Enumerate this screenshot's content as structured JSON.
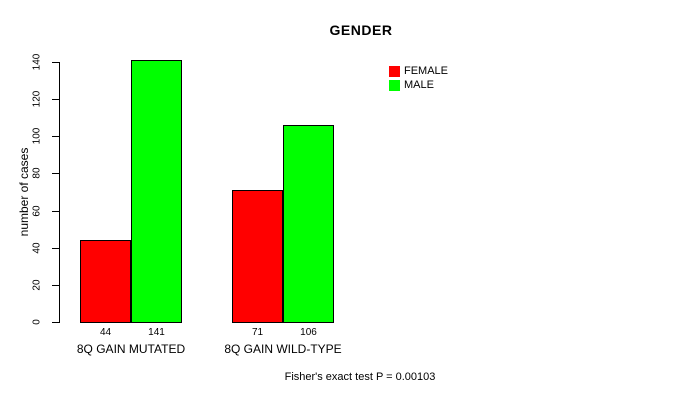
{
  "chart_data": {
    "type": "bar",
    "title": "GENDER",
    "ylabel": "number of cases",
    "xlabel": "",
    "categories": [
      "8Q GAIN MUTATED",
      "8Q GAIN WILD-TYPE"
    ],
    "series": [
      {
        "name": "FEMALE",
        "color": "#FF0000",
        "values": [
          44,
          71
        ]
      },
      {
        "name": "MALE",
        "color": "#00FF00",
        "values": [
          141,
          106
        ]
      }
    ],
    "value_labels": [
      [
        "44",
        "141"
      ],
      [
        "71",
        "106"
      ]
    ],
    "ylim": [
      0,
      140
    ],
    "yticks": [
      0,
      20,
      40,
      60,
      80,
      100,
      120,
      140
    ],
    "grid": false,
    "legend_position": "top-right-inside",
    "note": "Fisher's exact test P = 0.00103"
  }
}
